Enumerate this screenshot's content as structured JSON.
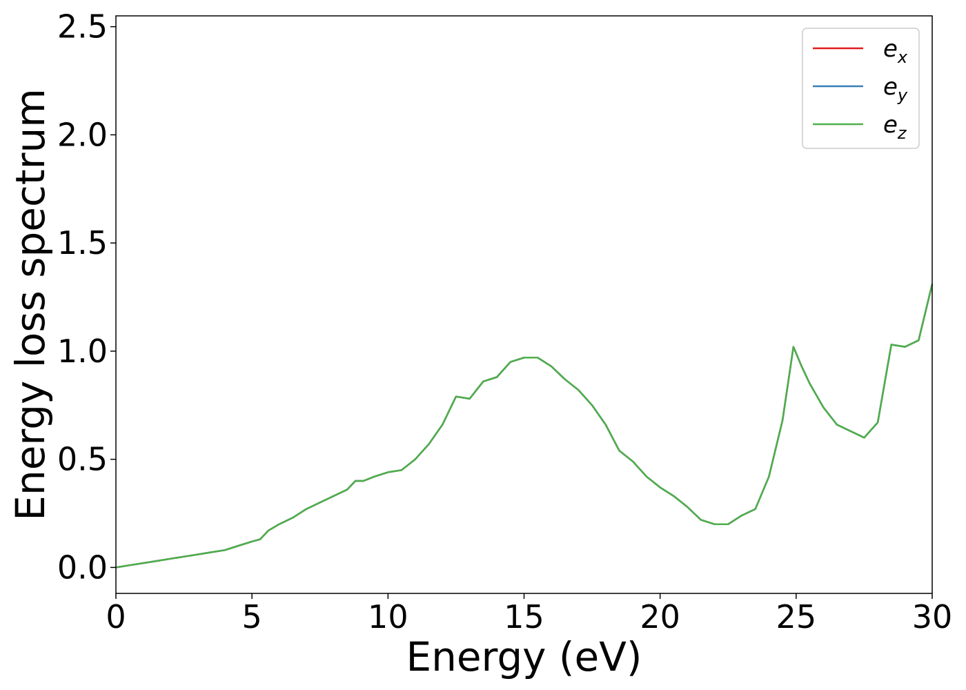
{
  "chart_data": {
    "type": "line",
    "xlabel": "Energy (eV)",
    "ylabel": "Energy loss spectrum",
    "xlim": [
      0,
      30
    ],
    "ylim": [
      -0.12,
      2.55
    ],
    "xticks": [
      0,
      5,
      10,
      15,
      20,
      25,
      30
    ],
    "xtick_labels": [
      "0",
      "5",
      "10",
      "15",
      "20",
      "25",
      "30"
    ],
    "yticks": [
      0.0,
      0.5,
      1.0,
      1.5,
      2.0,
      2.5
    ],
    "ytick_labels": [
      "0.0",
      "0.5",
      "1.0",
      "1.5",
      "2.0",
      "2.5"
    ],
    "grid": false,
    "legend_position": "top-right",
    "series": [
      {
        "name": "e_x",
        "label_base": "e",
        "label_sub": "x",
        "color": "#e41a1c"
      },
      {
        "name": "e_y",
        "label_base": "e",
        "label_sub": "y",
        "color": "#377eb8"
      },
      {
        "name": "e_z",
        "label_base": "e",
        "label_sub": "z",
        "color": "#4daf4a"
      }
    ],
    "x": [
      0,
      0.5,
      1,
      1.5,
      2,
      2.5,
      3,
      3.5,
      4,
      4.5,
      5,
      5.3,
      5.6,
      6,
      6.5,
      7,
      7.5,
      8,
      8.5,
      8.8,
      9.1,
      9.5,
      10,
      10.5,
      11,
      11.5,
      12,
      12.5,
      13,
      13.5,
      14,
      14.5,
      15,
      15.5,
      16,
      16.5,
      17,
      17.5,
      18,
      18.5,
      19,
      19.5,
      20,
      20.5,
      21,
      21.5,
      22,
      22.5,
      23,
      23.5,
      24,
      24.5,
      24.9,
      25.2,
      25.5,
      26,
      26.5,
      27,
      27.5,
      28,
      28.5,
      29,
      29.5,
      30
    ],
    "y": [
      0.0,
      0.01,
      0.02,
      0.03,
      0.04,
      0.05,
      0.06,
      0.07,
      0.08,
      0.1,
      0.12,
      0.13,
      0.17,
      0.2,
      0.23,
      0.27,
      0.3,
      0.33,
      0.36,
      0.4,
      0.4,
      0.42,
      0.44,
      0.45,
      0.5,
      0.57,
      0.66,
      0.79,
      0.78,
      0.86,
      0.88,
      0.95,
      0.97,
      0.97,
      0.93,
      0.87,
      0.82,
      0.75,
      0.66,
      0.54,
      0.49,
      0.42,
      0.37,
      0.33,
      0.28,
      0.22,
      0.2,
      0.2,
      0.24,
      0.27,
      0.42,
      0.68,
      1.02,
      0.93,
      0.85,
      0.74,
      0.66,
      0.63,
      0.6,
      0.67,
      1.03,
      1.02,
      1.05,
      1.31
    ]
  }
}
